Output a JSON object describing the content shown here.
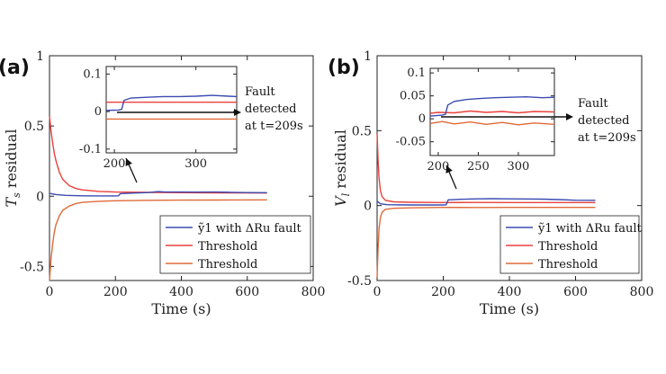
{
  "chart_data": [
    {
      "type": "line",
      "panel_label": "(a)",
      "xlabel": "Time (s)",
      "ylabel": "T_s residual",
      "ylabel_main": "T",
      "ylabel_sub": "s",
      "ylabel_rest": " residual",
      "xlim": [
        0,
        800
      ],
      "ylim": [
        -0.6,
        1.0
      ],
      "xticks": [
        "0",
        "200",
        "400",
        "600",
        "800"
      ],
      "xtick_values": [
        0,
        200,
        400,
        600,
        800
      ],
      "yticks": [
        "-0.5",
        "0",
        "0.5",
        "1"
      ],
      "ytick_values": [
        -0.5,
        0,
        0.5,
        1
      ],
      "legend_position": "bottom-right",
      "series": [
        {
          "name": "ỹ1 with ΔRu fault",
          "color": "#3a4bb0",
          "points": [
            [
              0,
              0.02
            ],
            [
              20,
              0.012
            ],
            [
              50,
              0.006
            ],
            [
              100,
              0.003
            ],
            [
              150,
              0.002
            ],
            [
              200,
              0.002
            ],
            [
              209,
              0.003
            ],
            [
              215,
              0.018
            ],
            [
              250,
              0.022
            ],
            [
              300,
              0.026
            ],
            [
              330,
              0.033
            ],
            [
              350,
              0.03
            ],
            [
              400,
              0.03
            ],
            [
              450,
              0.029
            ],
            [
              500,
              0.03
            ],
            [
              550,
              0.028
            ],
            [
              600,
              0.026
            ],
            [
              650,
              0.025
            ],
            [
              660,
              0.025
            ]
          ]
        },
        {
          "name": "Threshold",
          "color": "#e8413c",
          "points": [
            [
              0,
              0.57
            ],
            [
              5,
              0.46
            ],
            [
              10,
              0.37
            ],
            [
              15,
              0.3
            ],
            [
              20,
              0.25
            ],
            [
              30,
              0.17
            ],
            [
              40,
              0.12
            ],
            [
              60,
              0.075
            ],
            [
              80,
              0.055
            ],
            [
              100,
              0.045
            ],
            [
              150,
              0.034
            ],
            [
              200,
              0.03
            ],
            [
              300,
              0.027
            ],
            [
              400,
              0.025
            ],
            [
              500,
              0.024
            ],
            [
              660,
              0.023
            ]
          ]
        },
        {
          "name": "Threshold",
          "color": "#e06a38",
          "points": [
            [
              0,
              -0.6
            ],
            [
              5,
              -0.44
            ],
            [
              10,
              -0.33
            ],
            [
              15,
              -0.25
            ],
            [
              20,
              -0.2
            ],
            [
              30,
              -0.14
            ],
            [
              40,
              -0.1
            ],
            [
              60,
              -0.07
            ],
            [
              80,
              -0.052
            ],
            [
              100,
              -0.044
            ],
            [
              150,
              -0.036
            ],
            [
              200,
              -0.032
            ],
            [
              300,
              -0.029
            ],
            [
              400,
              -0.028
            ],
            [
              500,
              -0.027
            ],
            [
              660,
              -0.026
            ]
          ]
        }
      ],
      "inset": {
        "xlim": [
          190,
          350
        ],
        "ylim": [
          -0.11,
          0.12
        ],
        "xticks": [
          "200",
          "300"
        ],
        "xtick_values": [
          200,
          300
        ],
        "yticks": [
          "-0.1",
          "0",
          "0.1"
        ],
        "ytick_values": [
          -0.1,
          0,
          0.1
        ],
        "series": [
          {
            "color": "#3a4bb0",
            "points": [
              [
                190,
                0.003
              ],
              [
                205,
                0.004
              ],
              [
                209,
                0.006
              ],
              [
                212,
                0.03
              ],
              [
                220,
                0.036
              ],
              [
                240,
                0.038
              ],
              [
                260,
                0.04
              ],
              [
                280,
                0.04
              ],
              [
                300,
                0.041
              ],
              [
                320,
                0.043
              ],
              [
                340,
                0.041
              ],
              [
                350,
                0.04
              ]
            ]
          },
          {
            "color": "#e8413c",
            "points": [
              [
                190,
                0.025
              ],
              [
                350,
                0.025
              ]
            ]
          },
          {
            "color": "#e06a38",
            "points": [
              [
                190,
                -0.02
              ],
              [
                350,
                -0.02
              ]
            ]
          }
        ],
        "annotation": [
          "Fault",
          "detected",
          "at t=209s"
        ]
      }
    },
    {
      "type": "line",
      "panel_label": "(b)",
      "xlabel": "Time (s)",
      "ylabel": "V_l residual",
      "ylabel_main": "V",
      "ylabel_sub": "l",
      "ylabel_rest": " residual",
      "xlim": [
        0,
        800
      ],
      "ylim": [
        -0.5,
        1.0
      ],
      "xticks": [
        "0",
        "200",
        "400",
        "600",
        "800"
      ],
      "xtick_values": [
        0,
        200,
        400,
        600,
        800
      ],
      "yticks": [
        "-0.5",
        "0",
        "0.5",
        "1"
      ],
      "ytick_values": [
        -0.5,
        0,
        0.5,
        1
      ],
      "legend_position": "bottom-right",
      "series": [
        {
          "name": "ỹ1 with ΔRu fault",
          "color": "#3a4bb0",
          "points": [
            [
              0,
              0.03
            ],
            [
              10,
              0.012
            ],
            [
              30,
              0.006
            ],
            [
              100,
              0.004
            ],
            [
              200,
              0.004
            ],
            [
              209,
              0.005
            ],
            [
              215,
              0.038
            ],
            [
              250,
              0.042
            ],
            [
              300,
              0.045
            ],
            [
              350,
              0.046
            ],
            [
              400,
              0.045
            ],
            [
              450,
              0.044
            ],
            [
              500,
              0.043
            ],
            [
              550,
              0.04
            ],
            [
              600,
              0.036
            ],
            [
              660,
              0.035
            ]
          ]
        },
        {
          "name": "Threshold",
          "color": "#e8413c",
          "points": [
            [
              0,
              0.48
            ],
            [
              3,
              0.3
            ],
            [
              6,
              0.18
            ],
            [
              10,
              0.1
            ],
            [
              15,
              0.06
            ],
            [
              25,
              0.035
            ],
            [
              50,
              0.025
            ],
            [
              100,
              0.022
            ],
            [
              200,
              0.02
            ],
            [
              300,
              0.021
            ],
            [
              400,
              0.02
            ],
            [
              500,
              0.02
            ],
            [
              660,
              0.02
            ]
          ]
        },
        {
          "name": "Threshold",
          "color": "#e06a38",
          "points": [
            [
              0,
              -0.48
            ],
            [
              3,
              -0.28
            ],
            [
              6,
              -0.15
            ],
            [
              10,
              -0.08
            ],
            [
              15,
              -0.045
            ],
            [
              25,
              -0.025
            ],
            [
              50,
              -0.018
            ],
            [
              100,
              -0.015
            ],
            [
              200,
              -0.012
            ],
            [
              300,
              -0.013
            ],
            [
              400,
              -0.012
            ],
            [
              500,
              -0.012
            ],
            [
              660,
              -0.012
            ]
          ]
        }
      ],
      "inset": {
        "xlim": [
          190,
          345
        ],
        "ylim": [
          -0.08,
          0.11
        ],
        "xticks": [
          "200",
          "250",
          "300"
        ],
        "xtick_values": [
          200,
          250,
          300
        ],
        "yticks": [
          "-0.05",
          "0",
          "0.05",
          "0.1"
        ],
        "ytick_values": [
          -0.05,
          0,
          0.05,
          0.1
        ],
        "series": [
          {
            "color": "#3a4bb0",
            "points": [
              [
                190,
                0.006
              ],
              [
                205,
                0.008
              ],
              [
                209,
                0.01
              ],
              [
                212,
                0.03
              ],
              [
                220,
                0.038
              ],
              [
                235,
                0.042
              ],
              [
                250,
                0.044
              ],
              [
                270,
                0.046
              ],
              [
                290,
                0.047
              ],
              [
                310,
                0.048
              ],
              [
                330,
                0.046
              ],
              [
                345,
                0.047
              ]
            ]
          },
          {
            "color": "#e8413c",
            "points": [
              [
                190,
                0.012
              ],
              [
                200,
                0.014
              ],
              [
                220,
                0.013
              ],
              [
                240,
                0.017
              ],
              [
                260,
                0.014
              ],
              [
                280,
                0.016
              ],
              [
                300,
                0.013
              ],
              [
                320,
                0.016
              ],
              [
                345,
                0.015
              ]
            ]
          },
          {
            "color": "#e06a38",
            "points": [
              [
                190,
                -0.01
              ],
              [
                205,
                -0.006
              ],
              [
                220,
                -0.011
              ],
              [
                240,
                -0.007
              ],
              [
                260,
                -0.012
              ],
              [
                280,
                -0.008
              ],
              [
                300,
                -0.013
              ],
              [
                320,
                -0.009
              ],
              [
                345,
                -0.012
              ]
            ]
          }
        ],
        "annotation": [
          "Fault",
          "detected",
          "at t=209s"
        ]
      }
    }
  ]
}
